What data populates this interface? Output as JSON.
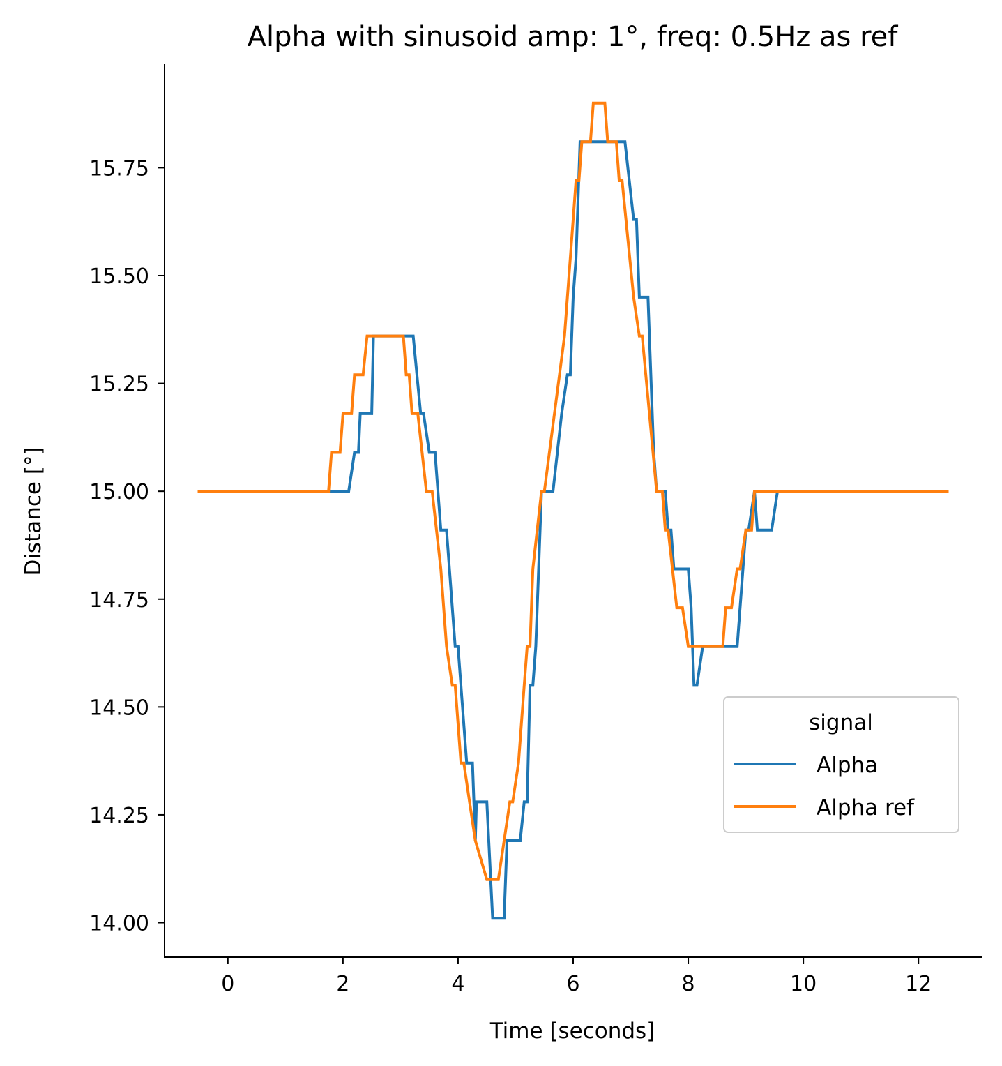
{
  "chart_data": {
    "type": "line",
    "title": "Alpha with sinusoid amp: 1°, freq: 0.5Hz as ref",
    "xlabel": "Time [seconds]",
    "ylabel": "Distance [°]",
    "xlim": [
      -1.1,
      13.1
    ],
    "ylim": [
      13.92,
      15.99
    ],
    "xticks": [
      0,
      2,
      4,
      6,
      8,
      10,
      12
    ],
    "yticks": [
      14.0,
      14.25,
      14.5,
      14.75,
      15.0,
      15.25,
      15.5,
      15.75
    ],
    "xtick_labels": [
      "0",
      "2",
      "4",
      "6",
      "8",
      "10",
      "12"
    ],
    "ytick_labels": [
      "14.00",
      "14.25",
      "14.50",
      "14.75",
      "15.00",
      "15.25",
      "15.50",
      "15.75"
    ],
    "grid": false,
    "legend": {
      "title": "signal",
      "position": "center-right"
    },
    "series": [
      {
        "name": "Alpha",
        "color": "#1f77b4",
        "points": [
          [
            -0.5,
            15.0
          ],
          [
            2.1,
            15.0
          ],
          [
            2.2,
            15.09
          ],
          [
            2.27,
            15.09
          ],
          [
            2.3,
            15.18
          ],
          [
            2.5,
            15.18
          ],
          [
            2.53,
            15.36
          ],
          [
            3.22,
            15.36
          ],
          [
            3.35,
            15.18
          ],
          [
            3.4,
            15.18
          ],
          [
            3.5,
            15.09
          ],
          [
            3.6,
            15.09
          ],
          [
            3.7,
            14.91
          ],
          [
            3.8,
            14.91
          ],
          [
            3.95,
            14.64
          ],
          [
            4.0,
            14.64
          ],
          [
            4.15,
            14.37
          ],
          [
            4.25,
            14.37
          ],
          [
            4.3,
            14.19
          ],
          [
            4.32,
            14.28
          ],
          [
            4.5,
            14.28
          ],
          [
            4.6,
            14.01
          ],
          [
            4.8,
            14.01
          ],
          [
            4.85,
            14.19
          ],
          [
            5.08,
            14.19
          ],
          [
            5.15,
            14.28
          ],
          [
            5.2,
            14.28
          ],
          [
            5.25,
            14.55
          ],
          [
            5.3,
            14.55
          ],
          [
            5.35,
            14.64
          ],
          [
            5.45,
            15.0
          ],
          [
            5.65,
            15.0
          ],
          [
            5.8,
            15.18
          ],
          [
            5.9,
            15.27
          ],
          [
            5.95,
            15.27
          ],
          [
            6.0,
            15.45
          ],
          [
            6.05,
            15.54
          ],
          [
            6.12,
            15.81
          ],
          [
            6.9,
            15.81
          ],
          [
            7.05,
            15.63
          ],
          [
            7.1,
            15.63
          ],
          [
            7.15,
            15.45
          ],
          [
            7.3,
            15.45
          ],
          [
            7.4,
            15.09
          ],
          [
            7.45,
            15.0
          ],
          [
            7.6,
            15.0
          ],
          [
            7.65,
            14.91
          ],
          [
            7.7,
            14.91
          ],
          [
            7.75,
            14.82
          ],
          [
            8.0,
            14.82
          ],
          [
            8.05,
            14.73
          ],
          [
            8.1,
            14.55
          ],
          [
            8.15,
            14.55
          ],
          [
            8.25,
            14.64
          ],
          [
            8.85,
            14.64
          ],
          [
            8.95,
            14.82
          ],
          [
            9.0,
            14.91
          ],
          [
            9.05,
            14.91
          ],
          [
            9.15,
            15.0
          ],
          [
            9.2,
            14.91
          ],
          [
            9.45,
            14.91
          ],
          [
            9.55,
            15.0
          ],
          [
            12.5,
            15.0
          ]
        ]
      },
      {
        "name": "Alpha ref",
        "color": "#ff7f0e",
        "points": [
          [
            -0.5,
            15.0
          ],
          [
            1.75,
            15.0
          ],
          [
            1.8,
            15.09
          ],
          [
            1.95,
            15.09
          ],
          [
            2.0,
            15.18
          ],
          [
            2.15,
            15.18
          ],
          [
            2.2,
            15.27
          ],
          [
            2.35,
            15.27
          ],
          [
            2.42,
            15.36
          ],
          [
            3.05,
            15.36
          ],
          [
            3.1,
            15.27
          ],
          [
            3.15,
            15.27
          ],
          [
            3.2,
            15.18
          ],
          [
            3.3,
            15.18
          ],
          [
            3.45,
            15.0
          ],
          [
            3.55,
            15.0
          ],
          [
            3.7,
            14.82
          ],
          [
            3.8,
            14.64
          ],
          [
            3.9,
            14.55
          ],
          [
            3.95,
            14.55
          ],
          [
            4.05,
            14.37
          ],
          [
            4.1,
            14.37
          ],
          [
            4.2,
            14.28
          ],
          [
            4.3,
            14.19
          ],
          [
            4.5,
            14.1
          ],
          [
            4.7,
            14.1
          ],
          [
            4.8,
            14.19
          ],
          [
            4.9,
            14.28
          ],
          [
            4.95,
            14.28
          ],
          [
            5.05,
            14.37
          ],
          [
            5.15,
            14.55
          ],
          [
            5.2,
            14.64
          ],
          [
            5.25,
            14.64
          ],
          [
            5.3,
            14.82
          ],
          [
            5.45,
            15.0
          ],
          [
            5.5,
            15.0
          ],
          [
            5.85,
            15.36
          ],
          [
            6.0,
            15.63
          ],
          [
            6.05,
            15.72
          ],
          [
            6.1,
            15.72
          ],
          [
            6.15,
            15.81
          ],
          [
            6.3,
            15.81
          ],
          [
            6.35,
            15.9
          ],
          [
            6.55,
            15.9
          ],
          [
            6.6,
            15.81
          ],
          [
            6.75,
            15.81
          ],
          [
            6.8,
            15.72
          ],
          [
            6.85,
            15.72
          ],
          [
            7.05,
            15.45
          ],
          [
            7.15,
            15.36
          ],
          [
            7.2,
            15.36
          ],
          [
            7.45,
            15.0
          ],
          [
            7.55,
            15.0
          ],
          [
            7.6,
            14.91
          ],
          [
            7.65,
            14.91
          ],
          [
            7.8,
            14.73
          ],
          [
            7.9,
            14.73
          ],
          [
            8.0,
            14.64
          ],
          [
            8.6,
            14.64
          ],
          [
            8.65,
            14.73
          ],
          [
            8.75,
            14.73
          ],
          [
            8.85,
            14.82
          ],
          [
            8.9,
            14.82
          ],
          [
            9.0,
            14.91
          ],
          [
            9.1,
            14.91
          ],
          [
            9.15,
            15.0
          ],
          [
            12.5,
            15.0
          ]
        ]
      }
    ]
  }
}
